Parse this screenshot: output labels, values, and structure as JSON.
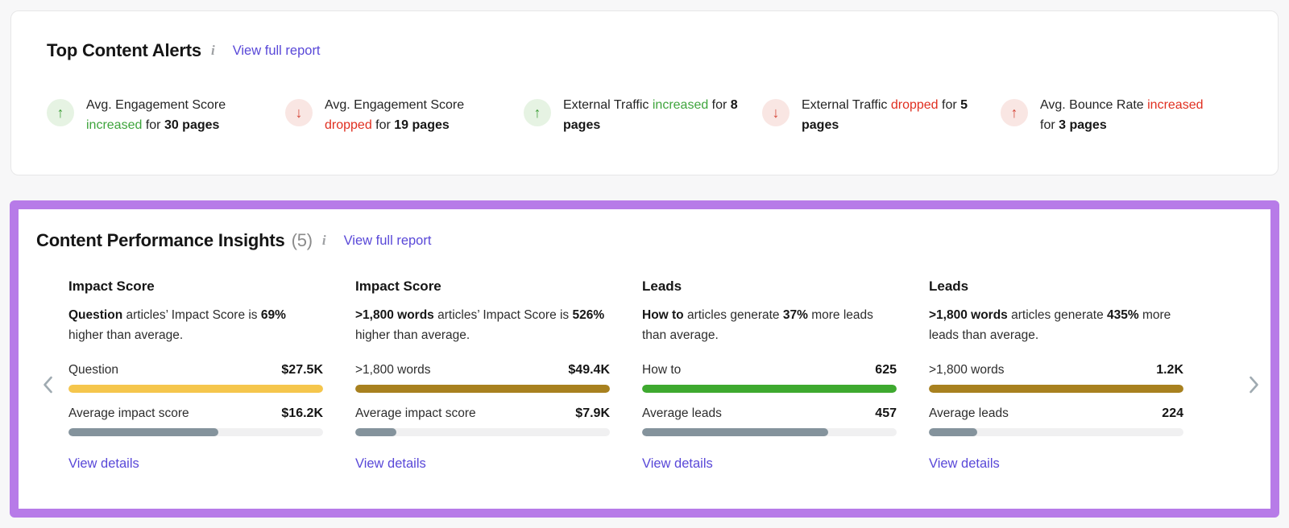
{
  "colors": {
    "link": "#5948d8",
    "green_text": "#3ea43c",
    "red_text": "#e02f20",
    "green_icon_bg": "#e6f3e3",
    "green_icon_fg": "#3f9f3a",
    "red_icon_bg": "#f9e6e3",
    "red_icon_fg": "#d6473a",
    "bar_yellow": "#f5c64c",
    "bar_gold": "#a8811f",
    "bar_green": "#3ea92f",
    "bar_gray": "#84939c",
    "highlight_border": "#b77be8"
  },
  "alerts_panel": {
    "title": "Top Content Alerts",
    "info_icon": "i",
    "view_full_report": "View full report",
    "alerts": [
      {
        "icon": "arrow-up-icon",
        "arrow": "↑",
        "circle_bg": "#e6f3e3",
        "arrow_color": "#3f9f3a",
        "trend_color": "#3ea43c",
        "s0": "Avg. Engagement Score ",
        "s1": "increased",
        "s2": " for ",
        "s3": "30 pages"
      },
      {
        "icon": "arrow-down-icon",
        "arrow": "↓",
        "circle_bg": "#f9e6e3",
        "arrow_color": "#d6473a",
        "trend_color": "#e02f20",
        "s0": "Avg. Engagement Score ",
        "s1": "dropped",
        "s2": " for ",
        "s3": "19 pages"
      },
      {
        "icon": "arrow-up-icon",
        "arrow": "↑",
        "circle_bg": "#e6f3e3",
        "arrow_color": "#3f9f3a",
        "trend_color": "#3ea43c",
        "s0": "External Traffic ",
        "s1": "increased",
        "s2": " for ",
        "s3": "8 pages"
      },
      {
        "icon": "arrow-down-icon",
        "arrow": "↓",
        "circle_bg": "#f9e6e3",
        "arrow_color": "#d6473a",
        "trend_color": "#e02f20",
        "s0": "External Traffic ",
        "s1": "dropped",
        "s2": " for ",
        "s3": "5 pages"
      },
      {
        "icon": "arrow-up-icon",
        "arrow": "↑",
        "circle_bg": "#f9e6e3",
        "arrow_color": "#d6473a",
        "trend_color": "#e02f20",
        "s0": "Avg. Bounce Rate ",
        "s1": "increased",
        "s2": " for ",
        "s3": "3 pages"
      }
    ]
  },
  "insights_panel": {
    "title": "Content Performance Insights",
    "count": "(5)",
    "info_icon": "i",
    "view_full_report": "View full report",
    "prev_icon": "chevron-left-icon",
    "next_icon": "chevron-right-icon",
    "cards": [
      {
        "title": "Impact Score",
        "desc": {
          "s0": "Question",
          "s1": " articles’ Impact Score is ",
          "s2": "69%",
          "s3": " higher than average."
        },
        "rows": [
          {
            "label": "Question",
            "value": "$27.5K",
            "bar_color": "#f5c64c",
            "bar_pct": 100
          },
          {
            "label": "Average impact score",
            "value": "$16.2K",
            "bar_color": "#84939c",
            "bar_pct": 59
          }
        ],
        "link": "View details"
      },
      {
        "title": "Impact Score",
        "desc": {
          "s0": ">1,800 words",
          "s1": " articles’ Impact Score is ",
          "s2": "526%",
          "s3": " higher than average."
        },
        "rows": [
          {
            "label": ">1,800 words",
            "value": "$49.4K",
            "bar_color": "#a8811f",
            "bar_pct": 100
          },
          {
            "label": "Average impact score",
            "value": "$7.9K",
            "bar_color": "#84939c",
            "bar_pct": 16
          }
        ],
        "link": "View details"
      },
      {
        "title": "Leads",
        "desc": {
          "s0": "How to",
          "s1": " articles generate ",
          "s2": "37%",
          "s3": " more leads than average."
        },
        "rows": [
          {
            "label": "How to",
            "value": "625",
            "bar_color": "#3ea92f",
            "bar_pct": 100
          },
          {
            "label": "Average leads",
            "value": "457",
            "bar_color": "#84939c",
            "bar_pct": 73
          }
        ],
        "link": "View details"
      },
      {
        "title": "Leads",
        "desc": {
          "s0": ">1,800 words",
          "s1": " articles generate ",
          "s2": "435%",
          "s3": " more leads than average."
        },
        "rows": [
          {
            "label": ">1,800 words",
            "value": "1.2K",
            "bar_color": "#a8811f",
            "bar_pct": 100
          },
          {
            "label": "Average leads",
            "value": "224",
            "bar_color": "#84939c",
            "bar_pct": 19
          }
        ],
        "link": "View details"
      }
    ]
  }
}
